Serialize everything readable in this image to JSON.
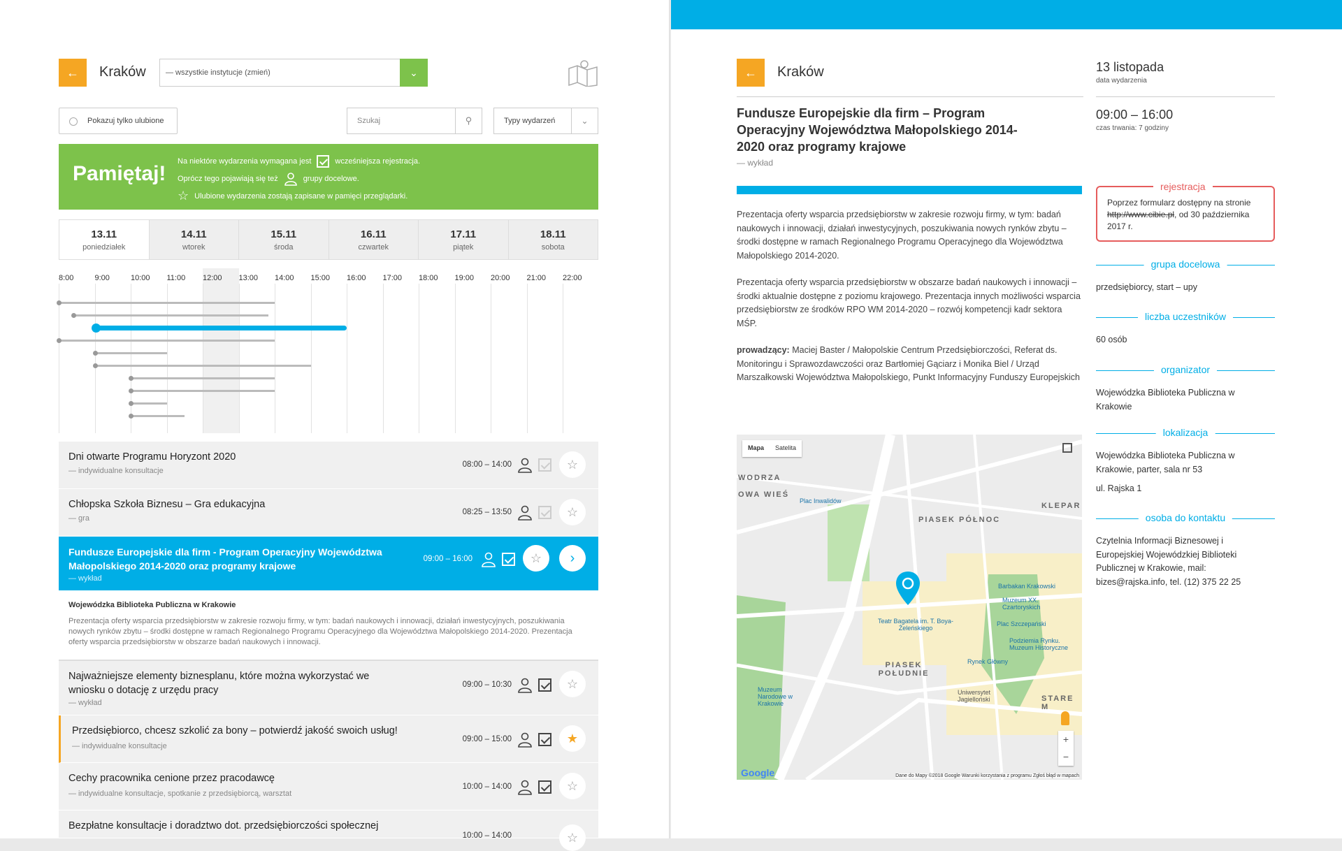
{
  "left": {
    "city": "Kraków",
    "back_icon": "←",
    "institution_select": "— wszystkie instytucje (zmień)",
    "favorites_label": "Pokazuj tylko ulubione",
    "search_placeholder": "Szukaj",
    "types_label": "Typy wydarzeń",
    "remember": {
      "title": "Pamiętaj!",
      "line1a": "Na niektóre wydarzenia wymagana jest",
      "line1b": "wcześniejsza rejestracja.",
      "line2a": "Oprócz tego pojawiają się też",
      "line2b": "grupy docelowe.",
      "line3": "Ulubione wydarzenia zostają zapisane w pamięci przeglądarki."
    },
    "days": [
      {
        "date": "13.11",
        "name": "poniedziałek"
      },
      {
        "date": "14.11",
        "name": "wtorek"
      },
      {
        "date": "15.11",
        "name": "środa"
      },
      {
        "date": "16.11",
        "name": "czwartek"
      },
      {
        "date": "17.11",
        "name": "piątek"
      },
      {
        "date": "18.11",
        "name": "sobota"
      }
    ],
    "hours": [
      "8:00",
      "9:00",
      "10:00",
      "11:00",
      "12:00",
      "13:00",
      "14:00",
      "15:00",
      "16:00",
      "17:00",
      "18:00",
      "19:00",
      "20:00",
      "21:00",
      "22:00"
    ],
    "events": [
      {
        "title": "Dni otwarte Programu Horyzont 2020",
        "sub": "— indywidualne konsultacje",
        "time": "08:00 – 14:00"
      },
      {
        "title": "Chłopska Szkoła Biznesu – Gra edukacyjna",
        "sub": "— gra",
        "time": "08:25 – 13:50"
      },
      {
        "title": "Fundusze Europejskie dla firm - Program Operacyjny Województwa Małopolskiego 2014-2020 oraz programy krajowe",
        "sub": "— wykład",
        "time": "09:00 – 16:00"
      },
      {
        "title": "Najważniejsze elementy biznesplanu, które można wykorzystać we wniosku o dotację z urzędu pracy",
        "sub": "— wykład",
        "time": "09:00 – 10:30"
      },
      {
        "title": "Przedsiębiorco, chcesz szkolić za bony – potwierdź jakość swoich usług!",
        "sub": "— indywidualne konsultacje",
        "time": "09:00 – 15:00"
      },
      {
        "title": "Cechy pracownika cenione przez pracodawcę",
        "sub": "— indywidualne konsultacje, spotkanie z przedsiębiorcą, warsztat",
        "time": "10:00 – 14:00"
      },
      {
        "title": "Bezpłatne konsultacje i doradztwo dot. przedsiębiorczości społecznej",
        "sub": "",
        "time": "10:00 – 14:00"
      }
    ],
    "expanded": {
      "org": "Wojewódzka Biblioteka Publiczna w Krakowie",
      "text": "Prezentacja oferty wsparcia przedsiębiorstw w zakresie rozwoju firmy, w tym: badań naukowych i innowacji, działań inwestycyjnych, poszukiwania nowych rynków zbytu – środki dostępne w ramach Regionalnego Programu Operacyjnego dla Województwa Małopolskiego 2014-2020. Prezentacja oferty wsparcia przedsiębiorstw w obszarze badań naukowych i innowacji."
    }
  },
  "right": {
    "city": "Kraków",
    "back_icon": "←",
    "title": "Fundusze Europejskie dla firm – Program Operacyjny Województwa Małopolskiego 2014-2020 oraz programy krajowe",
    "type": "— wykład",
    "date": "13 listopada",
    "date_label": "data wydarzenia",
    "time": "09:00 – 16:00",
    "time_label": "czas trwania: 7 godziny",
    "body1": "Prezentacja oferty wsparcia przedsiębiorstw w zakresie rozwoju firmy, w tym: badań naukowych i innowacji, działań inwestycyjnych, poszukiwania nowych rynków zbytu – środki dostępne w ramach Regionalnego Programu Operacyjnego dla Województwa Małopolskiego 2014-2020.",
    "body2": "Prezentacja oferty wsparcia przedsiębiorstw w obszarze badań naukowych i innowacji – środki aktualnie dostępne z poziomu krajowego. Prezentacja innych możliwości wsparcia przedsiębiorstw ze środków RPO WM 2014-2020 – rozwój kompetencji kadr sektora MŚP.",
    "body3_label": "prowadzący:",
    "body3": "Maciej Baster / Małopolskie Centrum Przedsiębiorczości, Referat ds. Monitoringu i Sprawozdawczości oraz Bartłomiej Gąciarz i Monika Biel / Urząd Marszałkowski Województwa Małopolskiego, Punkt Informacyjny Funduszy Europejskich",
    "registration": {
      "heading": "rejestracja",
      "text_a": "Poprzez formularz dostępny na stronie",
      "link": "http://www.cibie.pl",
      "text_b": ", od 30 października 2017 r."
    },
    "target_heading": "grupa docelowa",
    "target": "przedsiębiorcy, start – upy",
    "count_heading": "liczba uczestników",
    "count": "60 osób",
    "organizer_heading": "organizator",
    "organizer": "Wojewódzka Biblioteka Publiczna w Krakowie",
    "location_heading": "lokalizacja",
    "location": "Wojewódzka Biblioteka Publiczna w Krakowie, parter, sala nr 53",
    "street": "ul. Rajska 1",
    "contact_heading": "osoba do kontaktu",
    "contact": "Czytelnia Informacji Biznesowej i Europejskiej Wojewódzkiej Biblioteki Publicznej w Krakowie, mail: bizes@rajska.info, tel. (12) 375 22 25",
    "map": {
      "tab_map": "Mapa",
      "tab_sat": "Satelita",
      "labels": [
        "PIASEK PÓŁNOC",
        "PIASEK POŁUDNIE",
        "STARE M",
        "KLEPAR",
        "OWA WIEŚ",
        "WODRZA"
      ],
      "places": [
        "Teatr Bagatela im. T. Boya-Żeleńskiego",
        "Muzeum XX. Czartoryskich",
        "Plac Szczepański",
        "Barbakan Krakowski",
        "Rynek Główny",
        "Uniwersytet Jagielloński",
        "Muzeum Narodowe w Krakowie",
        "Plac Inwalidów",
        "Podziemia Rynku. Muzeum Historyczne"
      ],
      "zoom_in": "+",
      "zoom_out": "−",
      "google": "Google",
      "footer": "Dane do Mapy ©2018 Google   Warunki korzystania z programu   Zgłoś błąd w mapach"
    }
  },
  "colors": {
    "accent_blue": "#00aee6",
    "green": "#7dc24b",
    "orange": "#f5a623",
    "red": "#e65c5c"
  }
}
